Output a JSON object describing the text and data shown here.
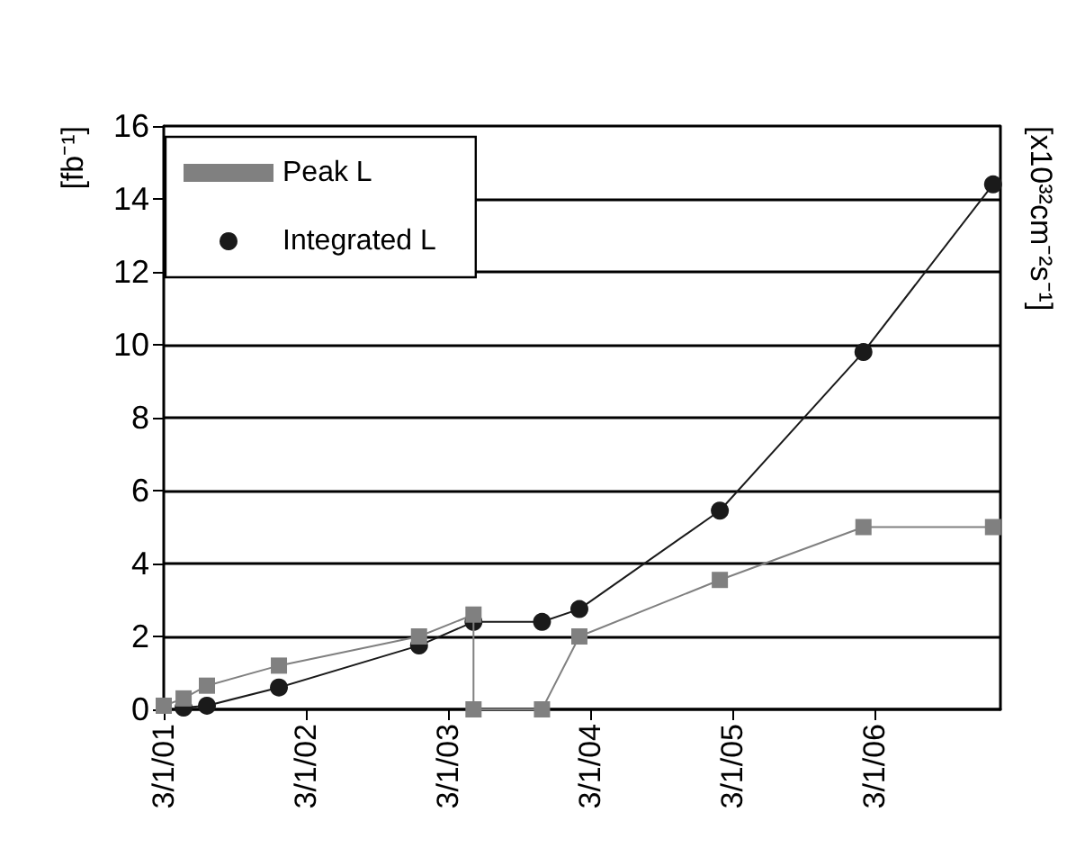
{
  "chart_data": {
    "type": "line",
    "ylabel": "[fb⁻¹]",
    "y2label": "[x10³²cm⁻²s⁻¹]",
    "xlim": [
      "2001-03-01",
      "2007-01-19"
    ],
    "xticks": [
      {
        "value": "2001-03-01",
        "label": "3/1/01"
      },
      {
        "value": "2002-03-01",
        "label": "3/1/02"
      },
      {
        "value": "2003-03-01",
        "label": "3/1/03"
      },
      {
        "value": "2004-03-01",
        "label": "3/1/04"
      },
      {
        "value": "2005-03-01",
        "label": "3/1/05"
      },
      {
        "value": "2006-03-01",
        "label": "3/1/06"
      }
    ],
    "ylim": [
      0,
      16
    ],
    "yticks": [
      0,
      2,
      4,
      6,
      8,
      10,
      12,
      14,
      16
    ],
    "grid": "y",
    "legend": "top left",
    "line_style": "solid",
    "series": [
      {
        "name": "Peak L",
        "color": "#808080",
        "marker": "square",
        "x": [
          "2001-03-01",
          "2001-04-21",
          "2001-06-20",
          "2001-12-22",
          "2002-12-17",
          "2003-05-06",
          "2003-05-06",
          "2003-10-29",
          "2004-02-02",
          "2005-01-28",
          "2006-02-01",
          "2006-12-31"
        ],
        "values": [
          0.1,
          0.3,
          0.65,
          1.2,
          2.0,
          2.6,
          0,
          0,
          2.0,
          3.55,
          5.0,
          5.0
        ]
      },
      {
        "name": "Integrated L",
        "color": "#1a1a1a",
        "marker": "circle",
        "x": [
          "2001-04-21",
          "2001-06-20",
          "2001-12-22",
          "2002-12-17",
          "2003-05-06",
          "2003-10-29",
          "2004-02-02",
          "2005-01-28",
          "2006-02-01",
          "2006-12-31"
        ],
        "values": [
          0.05,
          0.1,
          0.6,
          1.75,
          2.4,
          2.4,
          2.75,
          5.45,
          9.8,
          14.4
        ]
      }
    ]
  }
}
